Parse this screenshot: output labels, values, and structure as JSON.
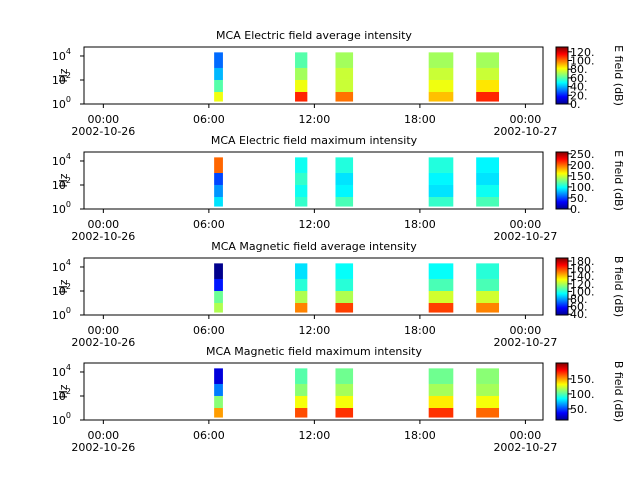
{
  "chart_data": [
    {
      "type": "spectrogram",
      "title": "MCA  Electric field average intensity",
      "ylabel": "Hz",
      "colorbar_label": "E field (dB)",
      "xlim": [
        -1.1,
        25.0
      ],
      "xticks": [
        {
          "value": 0,
          "label": "00:00"
        },
        {
          "value": 6,
          "label": "06:00"
        },
        {
          "value": 12,
          "label": "12:00"
        },
        {
          "value": 18,
          "label": "18:00"
        },
        {
          "value": 24,
          "label": "00:00"
        }
      ],
      "x_dates": [
        {
          "value": 0,
          "label": "2002-10-26"
        },
        {
          "value": 24,
          "label": "2002-10-27"
        }
      ],
      "log_y": true,
      "ylim": [
        1,
        56000
      ],
      "yticks": [
        {
          "value": 1,
          "label": "10",
          "power": "0"
        },
        {
          "value": 100,
          "label": "10",
          "power": "2"
        },
        {
          "value": 10000,
          "label": "10",
          "power": "4"
        }
      ],
      "freq_edges": [
        1.6,
        10,
        100,
        1000,
        20000
      ],
      "clim": [
        0,
        131
      ],
      "cticks": [
        {
          "value": 0,
          "label": "0."
        },
        {
          "value": 20,
          "label": "20."
        },
        {
          "value": 40,
          "label": "40."
        },
        {
          "value": 60,
          "label": "60."
        },
        {
          "value": 80,
          "label": "80."
        },
        {
          "value": 100,
          "label": "100."
        },
        {
          "value": 120,
          "label": "120."
        }
      ],
      "segments": [
        {
          "start": 6.3,
          "end": 6.8,
          "values": [
            80,
            60,
            40,
            30
          ]
        },
        {
          "start": 10.9,
          "end": 11.6,
          "values": [
            110,
            80,
            70,
            60
          ]
        },
        {
          "start": 13.2,
          "end": 14.2,
          "values": [
            100,
            75,
            75,
            70
          ]
        },
        {
          "start": 18.5,
          "end": 19.9,
          "values": [
            90,
            80,
            75,
            70
          ]
        },
        {
          "start": 21.2,
          "end": 22.5,
          "values": [
            110,
            85,
            75,
            70
          ]
        }
      ]
    },
    {
      "type": "spectrogram",
      "title": "MCA  Electric field maximum intensity",
      "ylabel": "Hz",
      "colorbar_label": "E field (dB)",
      "xlim": [
        -1.1,
        25.0
      ],
      "xticks": [
        {
          "value": 0,
          "label": "00:00"
        },
        {
          "value": 6,
          "label": "06:00"
        },
        {
          "value": 12,
          "label": "12:00"
        },
        {
          "value": 18,
          "label": "18:00"
        },
        {
          "value": 24,
          "label": "00:00"
        }
      ],
      "x_dates": [
        {
          "value": 0,
          "label": "2002-10-26"
        },
        {
          "value": 24,
          "label": "2002-10-27"
        }
      ],
      "log_y": true,
      "ylim": [
        1,
        56000
      ],
      "yticks": [
        {
          "value": 1,
          "label": "10",
          "power": "0"
        },
        {
          "value": 100,
          "label": "10",
          "power": "2"
        },
        {
          "value": 10000,
          "label": "10",
          "power": "4"
        }
      ],
      "freq_edges": [
        1.6,
        10,
        100,
        1000,
        20000
      ],
      "clim": [
        0,
        258
      ],
      "cticks": [
        {
          "value": 0,
          "label": "0."
        },
        {
          "value": 50,
          "label": "50."
        },
        {
          "value": 100,
          "label": "100."
        },
        {
          "value": 150,
          "label": "150."
        },
        {
          "value": 200,
          "label": "200."
        },
        {
          "value": 250,
          "label": "250."
        }
      ],
      "segments": [
        {
          "start": 6.3,
          "end": 6.8,
          "values": [
            90,
            70,
            50,
            200
          ]
        },
        {
          "start": 10.9,
          "end": 11.6,
          "values": [
            110,
            100,
            110,
            100
          ]
        },
        {
          "start": 13.2,
          "end": 14.2,
          "values": [
            115,
            95,
            90,
            105
          ]
        },
        {
          "start": 18.5,
          "end": 19.9,
          "values": [
            110,
            90,
            95,
            105
          ]
        },
        {
          "start": 21.2,
          "end": 22.5,
          "values": [
            115,
            100,
            90,
            95
          ]
        }
      ]
    },
    {
      "type": "spectrogram",
      "title": "MCA  Magnetic field average intensity",
      "ylabel": "Hz",
      "colorbar_label": "B field (dB)",
      "xlim": [
        -1.1,
        25.0
      ],
      "xticks": [
        {
          "value": 0,
          "label": "00:00"
        },
        {
          "value": 6,
          "label": "06:00"
        },
        {
          "value": 12,
          "label": "12:00"
        },
        {
          "value": 18,
          "label": "18:00"
        },
        {
          "value": 24,
          "label": "00:00"
        }
      ],
      "x_dates": [
        {
          "value": 0,
          "label": "2002-10-26"
        },
        {
          "value": 24,
          "label": "2002-10-27"
        }
      ],
      "log_y": true,
      "ylim": [
        1,
        56000
      ],
      "yticks": [
        {
          "value": 1,
          "label": "10",
          "power": "0"
        },
        {
          "value": 100,
          "label": "10",
          "power": "2"
        },
        {
          "value": 10000,
          "label": "10",
          "power": "4"
        }
      ],
      "freq_edges": [
        1.6,
        10,
        100,
        1000,
        20000
      ],
      "clim": [
        38,
        188
      ],
      "cticks": [
        {
          "value": 40,
          "label": "40."
        },
        {
          "value": 60,
          "label": "60."
        },
        {
          "value": 80,
          "label": "80."
        },
        {
          "value": 100,
          "label": "100."
        },
        {
          "value": 120,
          "label": "120."
        },
        {
          "value": 140,
          "label": "140."
        },
        {
          "value": 160,
          "label": "160."
        },
        {
          "value": 180,
          "label": "180."
        }
      ],
      "segments": [
        {
          "start": 6.3,
          "end": 6.8,
          "values": [
            120,
            110,
            60,
            40
          ]
        },
        {
          "start": 10.9,
          "end": 11.6,
          "values": [
            150,
            120,
            100,
            90
          ]
        },
        {
          "start": 13.2,
          "end": 14.2,
          "values": [
            160,
            120,
            100,
            95
          ]
        },
        {
          "start": 18.5,
          "end": 19.9,
          "values": [
            160,
            125,
            105,
            95
          ]
        },
        {
          "start": 21.2,
          "end": 22.5,
          "values": [
            150,
            125,
            105,
            100
          ]
        }
      ]
    },
    {
      "type": "spectrogram",
      "title": "MCA  Magnetic field maximum intensity",
      "ylabel": "Hz",
      "colorbar_label": "B field (dB)",
      "xlim": [
        -1.1,
        25.0
      ],
      "xticks": [
        {
          "value": 0,
          "label": "00:00"
        },
        {
          "value": 6,
          "label": "06:00"
        },
        {
          "value": 12,
          "label": "12:00"
        },
        {
          "value": 18,
          "label": "18:00"
        },
        {
          "value": 24,
          "label": "00:00"
        }
      ],
      "x_dates": [
        {
          "value": 0,
          "label": "2002-10-26"
        },
        {
          "value": 24,
          "label": "2002-10-27"
        }
      ],
      "log_y": true,
      "ylim": [
        1,
        56000
      ],
      "yticks": [
        {
          "value": 1,
          "label": "10",
          "power": "0"
        },
        {
          "value": 100,
          "label": "10",
          "power": "2"
        },
        {
          "value": 10000,
          "label": "10",
          "power": "4"
        }
      ],
      "freq_edges": [
        1.6,
        10,
        100,
        1000,
        20000
      ],
      "clim": [
        13,
        203
      ],
      "cticks": [
        {
          "value": 50,
          "label": "50."
        },
        {
          "value": 100,
          "label": "100."
        },
        {
          "value": 150,
          "label": "150."
        }
      ],
      "segments": [
        {
          "start": 6.3,
          "end": 6.8,
          "values": [
            150,
            110,
            60,
            30
          ]
        },
        {
          "start": 10.9,
          "end": 11.6,
          "values": [
            165,
            130,
            110,
            100
          ]
        },
        {
          "start": 13.2,
          "end": 14.2,
          "values": [
            170,
            130,
            115,
            105
          ]
        },
        {
          "start": 18.5,
          "end": 19.9,
          "values": [
            170,
            135,
            115,
            105
          ]
        },
        {
          "start": 21.2,
          "end": 22.5,
          "values": [
            160,
            130,
            115,
            110
          ]
        }
      ]
    }
  ]
}
